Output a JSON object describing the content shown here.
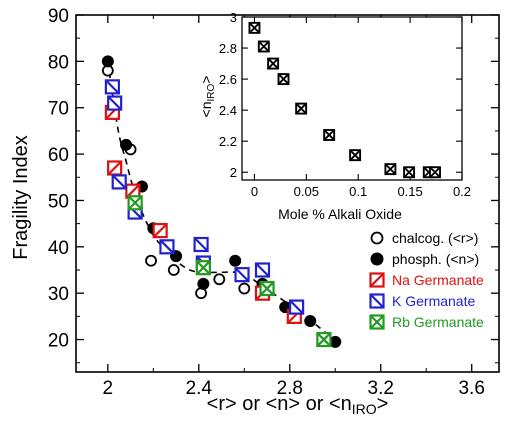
{
  "chart_data": [
    {
      "type": "scatter",
      "xlabel": "<r> or <n> or <n",
      "xlabel_sub": "IRO",
      "xlabel_end": ">",
      "ylabel": "Fragility Index",
      "xlim": [
        1.86,
        3.72
      ],
      "ylim": [
        13,
        90
      ],
      "xticks": [
        2,
        2.4,
        2.8,
        3.2,
        3.6
      ],
      "xtick_labels": [
        "2",
        "2.4",
        "2.8",
        "3.2",
        "3.6"
      ],
      "yticks": [
        20,
        30,
        40,
        50,
        60,
        70,
        80,
        90
      ],
      "ytick_labels": [
        "20",
        "30",
        "40",
        "50",
        "60",
        "70",
        "80",
        "90"
      ],
      "legend_position": "bottom-right",
      "series": [
        {
          "name": "chalcog. (<r>)",
          "marker": "open-circle",
          "color": "#000000",
          "x": [
            2.0,
            2.1,
            2.19,
            2.29,
            2.41,
            2.49,
            2.6
          ],
          "y": [
            78,
            61,
            37,
            35,
            30,
            33,
            31
          ]
        },
        {
          "name": "phosph. (<n>)",
          "marker": "filled-circle",
          "color": "#000000",
          "x": [
            2.0,
            2.08,
            2.15,
            2.2,
            2.3,
            2.42,
            2.56,
            2.68,
            2.78,
            2.89,
            3.0
          ],
          "y": [
            80,
            62,
            53,
            44,
            38,
            32,
            37,
            32,
            27,
            24,
            19.5
          ]
        },
        {
          "name": "Na Germanate",
          "marker": "slash-square",
          "color": "#dd1111",
          "x": [
            2.02,
            2.03,
            2.11,
            2.23,
            2.68,
            2.82
          ],
          "y": [
            69,
            57,
            52,
            43.5,
            30,
            25
          ]
        },
        {
          "name": "K Germanate",
          "marker": "backslash-square",
          "color": "#2222cc",
          "x": [
            2.02,
            2.03,
            2.05,
            2.12,
            2.26,
            2.41,
            2.42,
            2.59,
            2.68,
            2.83
          ],
          "y": [
            74.5,
            71,
            54,
            47.5,
            40,
            40.5,
            36.5,
            34,
            35,
            27
          ]
        },
        {
          "name": "Rb Germanate",
          "marker": "cross-square",
          "color": "#229922",
          "x": [
            2.12,
            2.42,
            2.7,
            2.95
          ],
          "y": [
            49.5,
            35.5,
            31,
            20
          ]
        }
      ],
      "fit_curve": {
        "style": "dashed",
        "color": "#000000",
        "x": [
          2.0,
          2.02,
          2.05,
          2.08,
          2.11,
          2.15,
          2.2,
          2.25,
          2.3,
          2.36,
          2.42,
          2.5,
          2.56,
          2.62,
          2.68,
          2.74,
          2.8,
          2.86,
          2.92,
          2.97,
          3.0
        ],
        "y": [
          80,
          73,
          64,
          58.5,
          53,
          47.5,
          42.5,
          39.5,
          37,
          35,
          34.5,
          34.5,
          34.5,
          33.5,
          31.5,
          29.5,
          27.5,
          25.5,
          23,
          21,
          19.5
        ]
      }
    },
    {
      "type": "scatter",
      "inset": true,
      "xlabel": "Mole % Alkali Oxide",
      "ylabel": "<n",
      "ylabel_sub": "IRO",
      "ylabel_end": ">",
      "xlim": [
        -0.012,
        0.2
      ],
      "ylim": [
        1.95,
        3.0
      ],
      "xticks": [
        0,
        0.05,
        0.1,
        0.15,
        0.2
      ],
      "xtick_labels": [
        "0",
        "0.05",
        "0.1",
        "0.15",
        "0.2"
      ],
      "yticks": [
        2,
        2.2,
        2.4,
        2.6,
        2.8,
        3
      ],
      "ytick_labels": [
        "2",
        "2.2",
        "2.4",
        "2.6",
        "2.8",
        "3"
      ],
      "series": [
        {
          "marker": "cross-square",
          "color": "#000000",
          "x": [
            0.0,
            0.009,
            0.018,
            0.028,
            0.045,
            0.072,
            0.097,
            0.131,
            0.149,
            0.168,
            0.174
          ],
          "y": [
            2.93,
            2.81,
            2.7,
            2.6,
            2.41,
            2.24,
            2.11,
            2.02,
            2.0,
            2.0,
            2.0
          ]
        }
      ]
    }
  ],
  "legend": [
    {
      "label": "chalcog. (<r>)",
      "marker": "open-circle",
      "color": "#000000"
    },
    {
      "label": "phosph. (<n>)",
      "marker": "filled-circle",
      "color": "#000000"
    },
    {
      "label": "Na Germanate",
      "marker": "slash-square",
      "color": "#dd1111"
    },
    {
      "label": "K Germanate",
      "marker": "backslash-square",
      "color": "#2222cc"
    },
    {
      "label": "Rb Germanate",
      "marker": "cross-square",
      "color": "#229922"
    }
  ]
}
